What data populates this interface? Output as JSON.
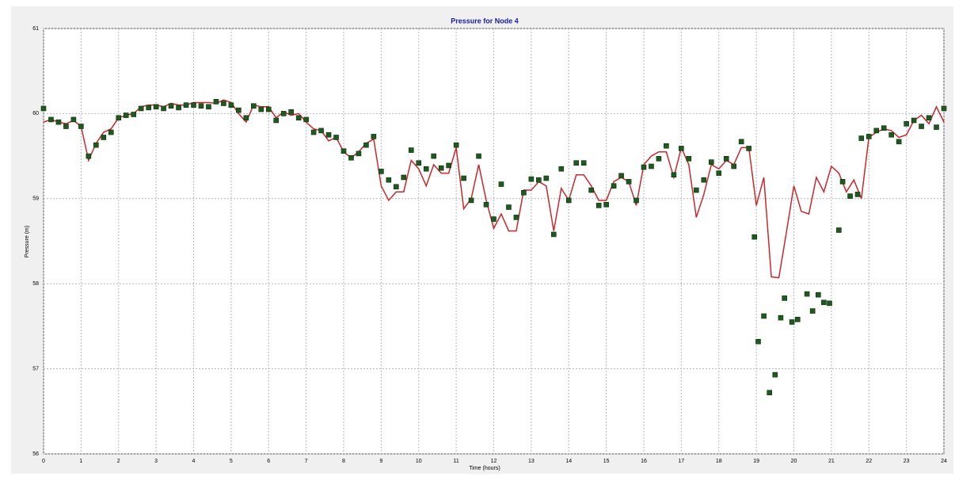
{
  "chart_data": {
    "type": "line",
    "title": "Pressure for Node 4",
    "xlabel": "Time (hours)",
    "ylabel": "Pressure (m)",
    "xlim": [
      0,
      24
    ],
    "ylim": [
      56,
      61
    ],
    "xticks": [
      0,
      1,
      2,
      3,
      4,
      5,
      6,
      7,
      8,
      9,
      10,
      11,
      12,
      13,
      14,
      15,
      16,
      17,
      18,
      19,
      20,
      21,
      22,
      23,
      24
    ],
    "yticks": [
      56,
      57,
      58,
      59,
      60,
      61
    ],
    "grid": true,
    "x": [
      0,
      0.2,
      0.4,
      0.6,
      0.8,
      1,
      1.2,
      1.4,
      1.6,
      1.8,
      2,
      2.2,
      2.4,
      2.6,
      2.8,
      3,
      3.2,
      3.4,
      3.6,
      3.8,
      4,
      4.2,
      4.4,
      4.6,
      4.8,
      5,
      5.2,
      5.4,
      5.6,
      5.8,
      6,
      6.2,
      6.4,
      6.6,
      6.8,
      7,
      7.2,
      7.4,
      7.6,
      7.8,
      8,
      8.2,
      8.4,
      8.6,
      8.8,
      9,
      9.2,
      9.4,
      9.6,
      9.8,
      10,
      10.2,
      10.4,
      10.6,
      10.8,
      11,
      11.2,
      11.4,
      11.6,
      11.8,
      12,
      12.2,
      12.4,
      12.6,
      12.8,
      13,
      13.2,
      13.4,
      13.6,
      13.8,
      14,
      14.2,
      14.4,
      14.6,
      14.8,
      15,
      15.2,
      15.4,
      15.6,
      15.8,
      16,
      16.2,
      16.4,
      16.6,
      16.8,
      17,
      17.2,
      17.4,
      17.6,
      17.8,
      18,
      18.2,
      18.4,
      18.6,
      18.8,
      19,
      19.2,
      19.4,
      19.6,
      19.8,
      20,
      20.2,
      20.4,
      20.6,
      20.8,
      21,
      21.2,
      21.4,
      21.6,
      21.8,
      22,
      22.2,
      22.4,
      22.6,
      22.8,
      23,
      23.2,
      23.4,
      23.6,
      23.8,
      24
    ],
    "series": [
      {
        "type": "line",
        "color": "#c8282d",
        "values": [
          59.9,
          59.93,
          59.9,
          59.88,
          59.92,
          59.85,
          59.45,
          59.65,
          59.78,
          59.82,
          59.95,
          59.98,
          60.0,
          60.08,
          60.1,
          60.1,
          60.08,
          60.12,
          60.1,
          60.1,
          60.13,
          60.13,
          60.13,
          60.12,
          60.16,
          60.13,
          60.0,
          59.9,
          60.1,
          60.08,
          60.08,
          59.95,
          60.02,
          59.98,
          60.0,
          59.9,
          59.82,
          59.8,
          59.68,
          59.72,
          59.55,
          59.48,
          59.55,
          59.65,
          59.7,
          59.15,
          58.98,
          59.08,
          59.08,
          59.45,
          59.35,
          59.15,
          59.4,
          59.3,
          59.3,
          59.6,
          58.88,
          59.0,
          59.4,
          58.98,
          58.65,
          58.82,
          58.62,
          58.62,
          59.1,
          59.1,
          59.2,
          59.15,
          58.62,
          59.12,
          58.98,
          59.28,
          59.28,
          59.15,
          58.98,
          58.98,
          59.2,
          59.25,
          59.2,
          58.92,
          59.4,
          59.5,
          59.55,
          59.55,
          59.25,
          59.6,
          59.4,
          58.78,
          59.05,
          59.4,
          59.35,
          59.45,
          59.4,
          59.6,
          59.6,
          58.92,
          59.25,
          58.08,
          58.07,
          58.6,
          59.15,
          58.85,
          58.82,
          59.25,
          59.08,
          59.38,
          59.3,
          59.08,
          59.22,
          59.0,
          59.72,
          59.78,
          59.82,
          59.8,
          59.72,
          59.75,
          59.92,
          59.98,
          59.88,
          60.08,
          59.9
        ]
      },
      {
        "type": "scatter",
        "color": "#1e5a1e",
        "x": [
          0,
          0.2,
          0.4,
          0.6,
          0.8,
          1,
          1.2,
          1.4,
          1.6,
          1.8,
          2,
          2.2,
          2.4,
          2.6,
          2.8,
          3,
          3.2,
          3.4,
          3.6,
          3.8,
          4,
          4.2,
          4.4,
          4.6,
          4.8,
          5,
          5.2,
          5.4,
          5.6,
          5.8,
          6,
          6.2,
          6.4,
          6.6,
          6.8,
          7,
          7.2,
          7.4,
          7.6,
          7.8,
          8,
          8.2,
          8.4,
          8.6,
          8.8,
          9,
          9.2,
          9.4,
          9.6,
          9.8,
          10,
          10.2,
          10.4,
          10.6,
          10.8,
          11,
          11.2,
          11.4,
          11.6,
          11.8,
          12,
          12.2,
          12.4,
          12.6,
          12.8,
          13,
          13.2,
          13.4,
          13.6,
          13.8,
          14,
          14.2,
          14.4,
          14.6,
          14.8,
          15,
          15.2,
          15.4,
          15.6,
          15.8,
          16,
          16.2,
          16.4,
          16.6,
          16.8,
          17,
          17.2,
          17.4,
          17.6,
          17.8,
          18,
          18.2,
          18.4,
          18.6,
          18.8,
          18.95,
          19.05,
          19.2,
          19.35,
          19.5,
          19.65,
          19.75,
          19.95,
          20.1,
          20.35,
          20.5,
          20.65,
          20.8,
          20.95,
          21.2,
          21.3,
          21.5,
          21.7,
          21.8,
          22,
          22.2,
          22.4,
          22.6,
          22.8,
          23,
          23.2,
          23.4,
          23.6,
          23.8,
          24
        ],
        "values": [
          60.06,
          59.93,
          59.9,
          59.85,
          59.93,
          59.85,
          59.5,
          59.63,
          59.72,
          59.78,
          59.95,
          59.98,
          59.99,
          60.06,
          60.07,
          60.08,
          60.06,
          60.09,
          60.07,
          60.1,
          60.1,
          60.09,
          60.08,
          60.14,
          60.12,
          60.1,
          60.04,
          59.95,
          60.09,
          60.05,
          60.05,
          59.92,
          60.0,
          60.02,
          59.95,
          59.93,
          59.78,
          59.8,
          59.75,
          59.72,
          59.56,
          59.48,
          59.53,
          59.63,
          59.73,
          59.32,
          59.22,
          59.14,
          59.25,
          59.57,
          59.42,
          59.35,
          59.5,
          59.36,
          59.39,
          59.63,
          59.24,
          58.98,
          59.5,
          58.93,
          58.76,
          59.17,
          58.9,
          58.78,
          59.07,
          59.23,
          59.22,
          59.24,
          58.58,
          59.35,
          58.98,
          59.42,
          59.42,
          59.1,
          58.92,
          58.93,
          59.15,
          59.27,
          59.2,
          58.98,
          59.37,
          59.38,
          59.47,
          59.62,
          59.28,
          59.59,
          59.47,
          59.1,
          59.22,
          59.43,
          59.3,
          59.47,
          59.38,
          59.67,
          59.59,
          58.55,
          57.32,
          57.62,
          56.72,
          56.93,
          57.6,
          57.83,
          57.55,
          57.58,
          57.88,
          57.68,
          57.87,
          57.78,
          57.77,
          58.63,
          59.2,
          59.03,
          59.05,
          59.71,
          59.73,
          59.8,
          59.83,
          59.75,
          59.67,
          59.88,
          59.92,
          59.85,
          59.95,
          59.84,
          60.06
        ]
      }
    ]
  }
}
